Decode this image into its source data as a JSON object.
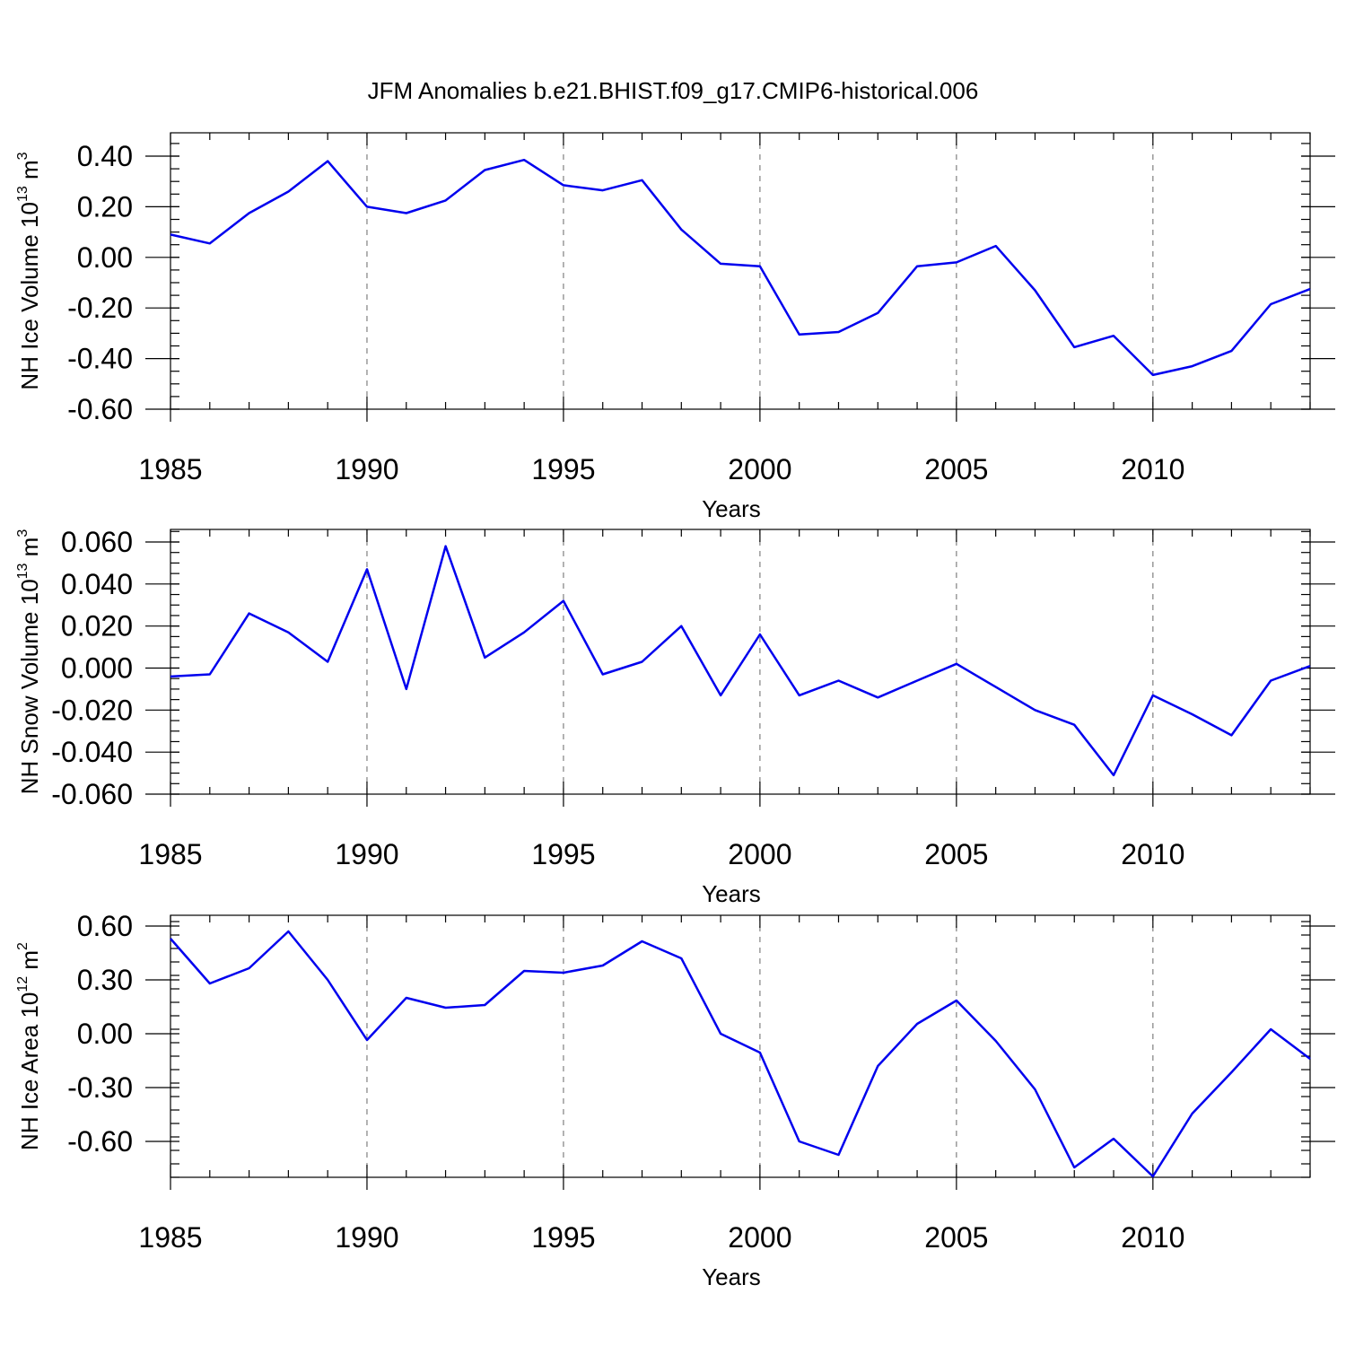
{
  "figure": {
    "title": "JFM Anomalies b.e21.BHIST.f09_g17.CMIP6-historical.006"
  },
  "colors": {
    "line": "#0000ee",
    "frame": "#000000",
    "grid": "#808080"
  },
  "chart_data": [
    {
      "type": "line",
      "ylabel": {
        "main": "NH Ice Volume 10",
        "exp": "13",
        "unit": " m",
        "unit_exp": "3"
      },
      "xlabel": "Years",
      "xlim": [
        1985,
        2014
      ],
      "ylim": [
        -0.6,
        0.45
      ],
      "yticks": [
        {
          "v": 0.4,
          "label": "0.40"
        },
        {
          "v": 0.2,
          "label": "0.20"
        },
        {
          "v": 0.0,
          "label": "0.00"
        },
        {
          "v": -0.2,
          "label": "-0.20"
        },
        {
          "v": -0.4,
          "label": "-0.40"
        },
        {
          "v": -0.6,
          "label": "-0.60"
        }
      ],
      "yminor_step": 0.05,
      "xticks": [
        {
          "v": 1985,
          "label": "1985"
        },
        {
          "v": 1990,
          "label": "1990"
        },
        {
          "v": 1995,
          "label": "1995"
        },
        {
          "v": 2000,
          "label": "2000"
        },
        {
          "v": 2005,
          "label": "2005"
        },
        {
          "v": 2010,
          "label": "2010"
        }
      ],
      "x": [
        1985,
        1986,
        1987,
        1988,
        1989,
        1990,
        1991,
        1992,
        1993,
        1994,
        1995,
        1996,
        1997,
        1998,
        1999,
        2000,
        2001,
        2002,
        2003,
        2004,
        2005,
        2006,
        2007,
        2008,
        2009,
        2010,
        2011,
        2012,
        2013,
        2014
      ],
      "values": [
        0.09,
        0.055,
        0.175,
        0.26,
        0.38,
        0.2,
        0.175,
        0.225,
        0.345,
        0.385,
        0.285,
        0.265,
        0.305,
        0.11,
        -0.025,
        -0.035,
        -0.305,
        -0.295,
        -0.22,
        -0.035,
        -0.02,
        0.045,
        -0.13,
        -0.355,
        -0.31,
        -0.465,
        -0.43,
        -0.37,
        -0.185,
        -0.125
      ]
    },
    {
      "type": "line",
      "ylabel": {
        "main": "NH Snow Volume 10",
        "exp": "13",
        "unit": " m",
        "unit_exp": "3"
      },
      "xlabel": "Years",
      "xlim": [
        1985,
        2014
      ],
      "ylim": [
        -0.06,
        0.06
      ],
      "yticks": [
        {
          "v": 0.06,
          "label": "0.060"
        },
        {
          "v": 0.04,
          "label": "0.040"
        },
        {
          "v": 0.02,
          "label": "0.020"
        },
        {
          "v": 0.0,
          "label": "0.000"
        },
        {
          "v": -0.02,
          "label": "-0.020"
        },
        {
          "v": -0.04,
          "label": "-0.040"
        },
        {
          "v": -0.06,
          "label": "-0.060"
        }
      ],
      "yminor_step": 0.005,
      "xticks": [
        {
          "v": 1985,
          "label": "1985"
        },
        {
          "v": 1990,
          "label": "1990"
        },
        {
          "v": 1995,
          "label": "1995"
        },
        {
          "v": 2000,
          "label": "2000"
        },
        {
          "v": 2005,
          "label": "2005"
        },
        {
          "v": 2010,
          "label": "2010"
        }
      ],
      "x": [
        1985,
        1986,
        1987,
        1988,
        1989,
        1990,
        1991,
        1992,
        1993,
        1994,
        1995,
        1996,
        1997,
        1998,
        1999,
        2000,
        2001,
        2002,
        2003,
        2004,
        2005,
        2006,
        2007,
        2008,
        2009,
        2010,
        2011,
        2012,
        2013,
        2014
      ],
      "values": [
        -0.004,
        -0.003,
        0.026,
        0.017,
        0.003,
        0.047,
        -0.01,
        0.058,
        0.005,
        0.017,
        0.032,
        -0.003,
        0.003,
        0.02,
        -0.013,
        0.016,
        -0.013,
        -0.006,
        -0.014,
        -0.006,
        0.002,
        -0.009,
        -0.02,
        -0.027,
        -0.051,
        -0.013,
        -0.022,
        -0.032,
        -0.006,
        0.001
      ]
    },
    {
      "type": "line",
      "ylabel": {
        "main": "NH Ice Area 10",
        "exp": "12",
        "unit": " m",
        "unit_exp": "2"
      },
      "xlabel": "Years",
      "xlim": [
        1985,
        2014
      ],
      "ylim": [
        -0.8,
        0.6
      ],
      "yticks": [
        {
          "v": 0.6,
          "label": "0.60"
        },
        {
          "v": 0.3,
          "label": "0.30"
        },
        {
          "v": 0.0,
          "label": "0.00"
        },
        {
          "v": -0.3,
          "label": "-0.30"
        },
        {
          "v": -0.6,
          "label": "-0.60"
        }
      ],
      "yminor_step": 0.075,
      "xticks": [
        {
          "v": 1985,
          "label": "1985"
        },
        {
          "v": 1990,
          "label": "1990"
        },
        {
          "v": 1995,
          "label": "1995"
        },
        {
          "v": 2000,
          "label": "2000"
        },
        {
          "v": 2005,
          "label": "2005"
        },
        {
          "v": 2010,
          "label": "2010"
        }
      ],
      "x": [
        1985,
        1986,
        1987,
        1988,
        1989,
        1990,
        1991,
        1992,
        1993,
        1994,
        1995,
        1996,
        1997,
        1998,
        1999,
        2000,
        2001,
        2002,
        2003,
        2004,
        2005,
        2006,
        2007,
        2008,
        2009,
        2010,
        2011,
        2012,
        2013,
        2014
      ],
      "values": [
        0.53,
        0.28,
        0.365,
        0.57,
        0.3,
        -0.035,
        0.2,
        0.145,
        0.16,
        0.35,
        0.34,
        0.38,
        0.515,
        0.42,
        0.0,
        -0.105,
        -0.6,
        -0.675,
        -0.18,
        0.055,
        0.185,
        -0.04,
        -0.31,
        -0.745,
        -0.585,
        -0.795,
        -0.445,
        -0.215,
        0.025,
        -0.14
      ]
    }
  ]
}
